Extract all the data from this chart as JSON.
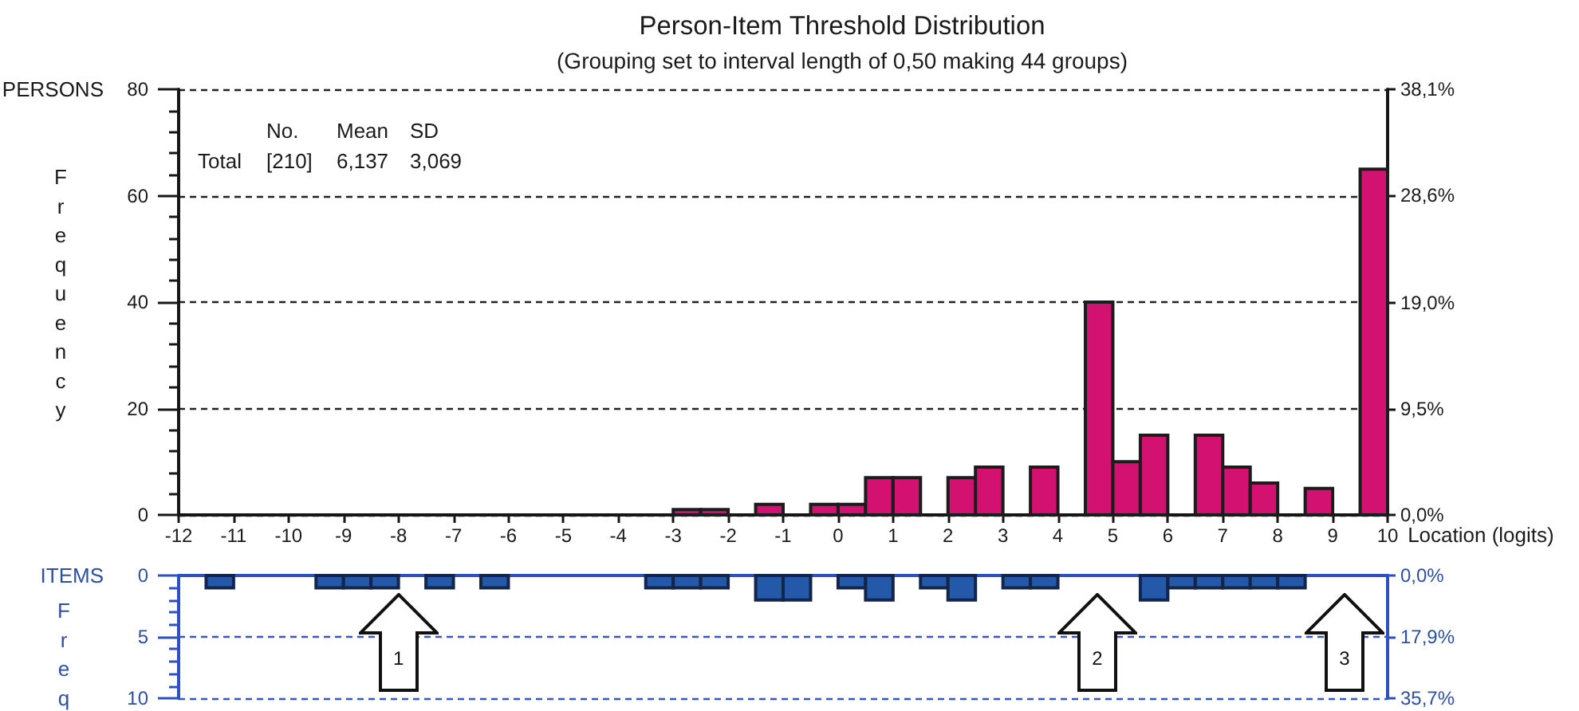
{
  "chart_data": [
    {
      "type": "histogram",
      "title": "Person-Item Threshold Distribution",
      "subtitle": "(Grouping set to interval length of 0,50 making 44 groups)",
      "xlabel": "Location (logits)",
      "ylabel": "Frequency",
      "annotations": [
        "PERSONS",
        "No.",
        "Mean",
        "SD",
        "Total",
        "[210]",
        "6,137",
        "3,069"
      ],
      "bins": [
        -12,
        -11.5,
        -11,
        -10.5,
        -10,
        -9.5,
        -9,
        -8.5,
        -8,
        -7.5,
        -7,
        -6.5,
        -6,
        -5.5,
        -5,
        -4.5,
        -4,
        -3.5,
        -3,
        -2.5,
        -2,
        -1.5,
        -1,
        -0.5,
        0,
        0.5,
        1,
        1.5,
        2,
        2.5,
        3,
        3.5,
        4,
        4.5,
        5,
        5.5,
        6,
        6.5,
        7,
        7.5,
        8,
        8.5,
        9,
        9.5,
        10
      ],
      "values": [
        0,
        0,
        0,
        0,
        0,
        0,
        0,
        0,
        0,
        0,
        0,
        0,
        0,
        0,
        0,
        0,
        0,
        0,
        1,
        1,
        0,
        2,
        0,
        2,
        2,
        7,
        7,
        0,
        7,
        9,
        0,
        9,
        0,
        40,
        10,
        15,
        0,
        15,
        9,
        6,
        0,
        5,
        0,
        65
      ],
      "color": "#d31170",
      "xlim": [
        -12,
        10
      ],
      "xticks": [
        -12,
        -11,
        -10,
        -9,
        -8,
        -7,
        -6,
        -5,
        -4,
        -3,
        -2,
        -1,
        0,
        1,
        2,
        3,
        4,
        5,
        6,
        7,
        8,
        9,
        10
      ],
      "ylim": [
        0,
        80
      ],
      "yticks": [
        0,
        20,
        40,
        60,
        80
      ],
      "y2lim": [
        0,
        38.1
      ],
      "y2ticks": [
        {
          "value": 0,
          "label": "0,0%"
        },
        {
          "value": 9.5,
          "label": "9,5%"
        },
        {
          "value": 19,
          "label": "19,0%"
        },
        {
          "value": 28.6,
          "label": "28,6%"
        },
        {
          "value": 38.1,
          "label": "38,1%"
        }
      ],
      "grid": "y"
    },
    {
      "type": "histogram",
      "ylabel": "Freq",
      "annotations": [
        "ITEMS",
        {
          "text": "1",
          "x": -8,
          "y": 1.5
        },
        "2",
        "3"
      ],
      "bins": [
        -12,
        -11.5,
        -11,
        -10.5,
        -10,
        -9.5,
        -9,
        -8.5,
        -8,
        -7.5,
        -7,
        -6.5,
        -6,
        -5.5,
        -5,
        -4.5,
        -4,
        -3.5,
        -3,
        -2.5,
        -2,
        -1.5,
        -1,
        -0.5,
        0,
        0.5,
        1,
        1.5,
        2,
        2.5,
        3,
        3.5,
        4,
        4.5,
        5,
        5.5,
        6,
        6.5,
        7,
        7.5,
        8,
        8.5,
        9,
        9.5,
        10
      ],
      "values": [
        0,
        1,
        0,
        0,
        0,
        1,
        1,
        1,
        0,
        1,
        0,
        1,
        0,
        0,
        0,
        0,
        0,
        1,
        1,
        1,
        0,
        2,
        2,
        0,
        1,
        2,
        0,
        1,
        2,
        0,
        1,
        1,
        0,
        0,
        0,
        2,
        1,
        1,
        1,
        1,
        1,
        0,
        0,
        0
      ],
      "color": "#2458a8",
      "xlim": [
        -12,
        10
      ],
      "ylim": [
        10,
        0
      ],
      "yticks": [
        0,
        5,
        10
      ],
      "y2lim": [
        35.7,
        0
      ],
      "y2ticks": [
        {
          "value": 0,
          "label": "0,0%"
        },
        {
          "value": 17.9,
          "label": "17,9%"
        },
        {
          "value": 35.7,
          "label": "35,7%"
        }
      ],
      "ref_lines": [
        {
          "axis": "y",
          "value": 5,
          "color": "#3657c2",
          "line_style": "dashed"
        },
        {
          "axis": "y",
          "value": 10,
          "color": "#3657c2",
          "line_style": "dashed"
        }
      ],
      "tick_labels": "y"
    }
  ]
}
